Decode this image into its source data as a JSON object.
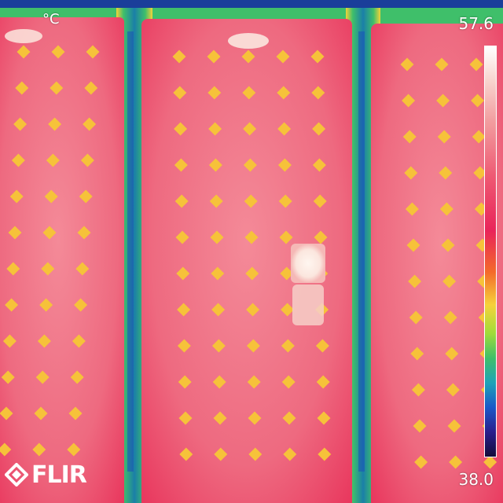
{
  "thermal": {
    "unit": "°C",
    "max_temp": "57.6",
    "min_temp": "38.0"
  },
  "brand": {
    "logo_text": "FLIR"
  },
  "colors": {
    "panel_hot": "#ec3f63",
    "panel_mid": "#f06e84",
    "gap_cool": "#1a8fa0",
    "cell_hotspot": "#f6c23a",
    "background_cold": "#1a3e9a"
  }
}
